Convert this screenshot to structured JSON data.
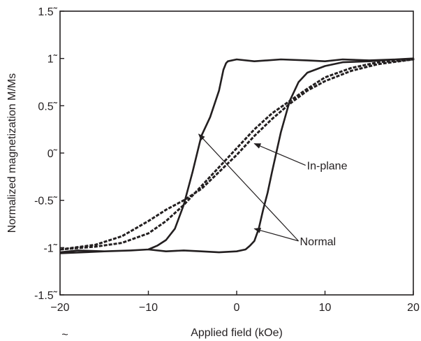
{
  "chart_data": {
    "type": "line",
    "title": "",
    "xlabel": "Applied field (kOe)",
    "ylabel": "Normalized magnetization M/Ms",
    "xlim": [
      -20,
      20
    ],
    "ylim": [
      -1.5,
      1.5
    ],
    "x_ticks": [
      -20,
      -10,
      0,
      10,
      20
    ],
    "x_tick_labels": [
      "−20",
      "−10",
      "0",
      "10",
      "20"
    ],
    "y_ticks": [
      -1.5,
      -1,
      -0.5,
      0,
      0.5,
      1,
      1.5
    ],
    "y_tick_labels": [
      "-1.5˜",
      "-1˜",
      "-0.5˜",
      "0˜",
      "0.5˜",
      "1˜",
      "1.5˜"
    ],
    "stray_mark": "~",
    "grid": false,
    "legend": "none",
    "series": [
      {
        "style": "solid",
        "color": "#231f20",
        "x": [
          -20,
          -15,
          -12,
          -10,
          -9,
          -8,
          -7,
          -6,
          -5,
          -4,
          -3,
          -2,
          -1.5,
          -1.2,
          -1,
          0,
          2,
          5,
          8,
          10,
          12,
          15,
          18,
          20,
          20,
          18,
          15,
          12,
          10,
          8,
          7,
          6,
          5,
          4,
          3.5,
          3,
          2.5,
          2,
          1.5,
          1,
          0,
          -2,
          -4,
          -6,
          -8,
          -10,
          -12,
          -15,
          -18,
          -20
        ],
        "y": [
          -1.06,
          -1.04,
          -1.03,
          -1.02,
          -0.98,
          -0.92,
          -0.8,
          -0.55,
          -0.2,
          0.18,
          0.38,
          0.66,
          0.88,
          0.95,
          0.97,
          0.99,
          0.97,
          0.99,
          0.98,
          0.97,
          0.99,
          0.98,
          0.99,
          1.0,
          1.0,
          0.99,
          0.97,
          0.96,
          0.92,
          0.85,
          0.75,
          0.55,
          0.22,
          -0.2,
          -0.42,
          -0.6,
          -0.8,
          -0.93,
          -0.98,
          -1.02,
          -1.04,
          -1.05,
          -1.04,
          -1.03,
          -1.04,
          -1.02,
          -1.03,
          -1.04,
          -1.03,
          -1.05
        ]
      },
      {
        "style": "dashed",
        "color": "#231f20",
        "x": [
          -20,
          -16,
          -13,
          -10,
          -8,
          -6,
          -4,
          -2,
          0,
          2,
          4,
          6,
          8,
          10,
          13,
          16,
          20,
          20,
          16,
          13,
          10,
          8,
          6,
          4,
          2,
          0,
          -2,
          -4,
          -6,
          -8,
          -10,
          -13,
          -16,
          -20
        ],
        "y": [
          -1.02,
          -0.99,
          -0.95,
          -0.85,
          -0.72,
          -0.55,
          -0.35,
          -0.15,
          0.05,
          0.25,
          0.42,
          0.55,
          0.68,
          0.8,
          0.9,
          0.96,
          0.99,
          0.99,
          0.94,
          0.87,
          0.76,
          0.66,
          0.52,
          0.36,
          0.18,
          -0.02,
          -0.2,
          -0.38,
          -0.5,
          -0.6,
          -0.72,
          -0.88,
          -0.97,
          -1.02
        ]
      }
    ],
    "annotations": [
      {
        "text": "In-plane",
        "label_at": [
          7.8,
          -0.13
        ],
        "arrows_to": [
          [
            2,
            0.1
          ]
        ]
      },
      {
        "text": "Normal",
        "label_at": [
          7.0,
          -0.93
        ],
        "arrows_to": [
          [
            -4.3,
            0.2
          ],
          [
            2.0,
            -0.8
          ]
        ]
      }
    ]
  }
}
